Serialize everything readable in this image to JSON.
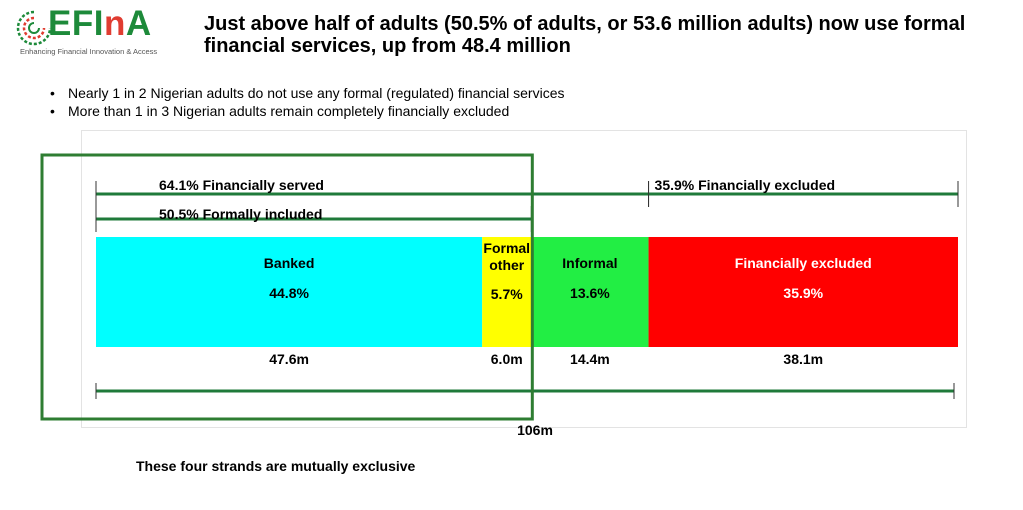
{
  "logo": {
    "name_main": "EFI",
    "name_accent": "n",
    "name_end": "A",
    "tagline": "Enhancing Financial Innovation & Access"
  },
  "title": "Just above half of adults (50.5% of adults, or 53.6 million adults) now use formal financial services, up from 48.4 million",
  "bullets": [
    "Nearly 1 in 2 Nigerian adults do not use any formal (regulated) financial services",
    "More than 1 in 3 Nigerian adults remain completely financially excluded"
  ],
  "footnote": "These four strands are mutually exclusive",
  "colors": {
    "banked": "#00ffff",
    "formal_other": "#ffff00",
    "informal": "#22ee44",
    "excluded": "#ff0000",
    "bracket": "#1f7a3a",
    "highlight_box": "#2e7d32"
  },
  "chart_data": {
    "type": "bar",
    "orientation": "horizontal-stacked",
    "total_label": "106m",
    "segments": [
      {
        "name_lines": [
          "Banked"
        ],
        "label": "44.8%",
        "value": 44.8,
        "absolute": "47.6m",
        "color": "#00ffff",
        "text_color": "#000000"
      },
      {
        "name_lines": [
          "Formal",
          "other"
        ],
        "label": "5.7%",
        "value": 5.7,
        "absolute": "6.0m",
        "color": "#ffff00",
        "text_color": "#000000"
      },
      {
        "name_lines": [
          "Informal"
        ],
        "label": "13.6%",
        "value": 13.6,
        "absolute": "14.4m",
        "color": "#22ee44",
        "text_color": "#000000"
      },
      {
        "name_lines": [
          "Financially excluded"
        ],
        "label": "35.9%",
        "value": 35.9,
        "absolute": "38.1m",
        "color": "#ff0000",
        "text_color": "#ffffff"
      }
    ],
    "brackets": [
      {
        "label": "64.1% Financially served",
        "from": 0,
        "to": 64.1
      },
      {
        "label": "35.9% Financially excluded",
        "from": 64.1,
        "to": 100
      },
      {
        "label": "50.5% Formally included",
        "from": 0,
        "to": 50.5
      }
    ]
  }
}
